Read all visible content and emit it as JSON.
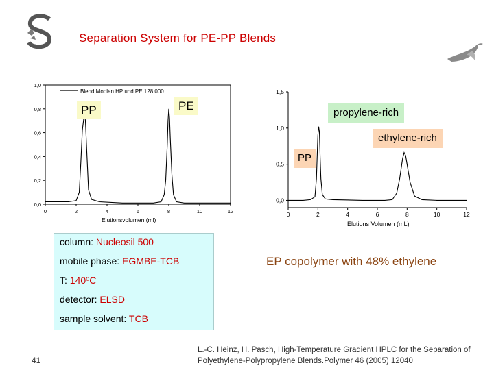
{
  "header": {
    "title": "Separation System for PE-PP Blends"
  },
  "chart_left_labels": {
    "pp": "PP",
    "pe": "PE"
  },
  "chart_right_labels": {
    "propylene_rich": "propylene-rich",
    "ethylene_rich": "ethylene-rich",
    "pp": "PP"
  },
  "chart_data": [
    {
      "type": "line",
      "legend": "Blend Moplen HP und PE 128.000",
      "xlabel": "Elutionsvolumen (ml)",
      "ylabel": "",
      "xlim": [
        0,
        12
      ],
      "ylim": [
        0,
        1.0
      ],
      "xticks": [
        0,
        2,
        4,
        6,
        8,
        10,
        12
      ],
      "yticks": [
        0.0,
        0.2,
        0.4,
        0.6,
        0.8,
        1.0
      ],
      "xtick_labels": [
        "0",
        "2",
        "4",
        "6",
        "8",
        "10",
        "12"
      ],
      "ytick_labels": [
        "0,0",
        "0,2",
        "0,4",
        "0,6",
        "0,8",
        "1,0"
      ],
      "series": [
        {
          "x": [
            0,
            1.5,
            2.0,
            2.2,
            2.3,
            2.4,
            2.5,
            2.55,
            2.6,
            2.7,
            2.8,
            3.0,
            3.5,
            5.0,
            7.0,
            7.5,
            7.7,
            7.8,
            7.9,
            7.95,
            8.0,
            8.05,
            8.1,
            8.2,
            8.3,
            8.5,
            9.0,
            10.0,
            12.0
          ],
          "y": [
            0.02,
            0.02,
            0.03,
            0.1,
            0.35,
            0.62,
            0.73,
            0.75,
            0.7,
            0.4,
            0.12,
            0.04,
            0.02,
            0.01,
            0.01,
            0.02,
            0.08,
            0.2,
            0.5,
            0.7,
            0.8,
            0.72,
            0.55,
            0.25,
            0.08,
            0.02,
            0.01,
            0.01,
            0.01
          ]
        }
      ]
    },
    {
      "type": "line",
      "xlabel": "Elutions Volumen (mL)",
      "ylabel": "",
      "xlim": [
        0,
        12
      ],
      "ylim": [
        -0.1,
        1.5
      ],
      "xticks": [
        0,
        2,
        4,
        6,
        8,
        10,
        12
      ],
      "yticks": [
        0.0,
        0.5,
        1.0,
        1.5
      ],
      "xtick_labels": [
        "0",
        "2",
        "4",
        "6",
        "8",
        "10",
        "12"
      ],
      "ytick_labels": [
        "0,0",
        "0,5",
        "1,0",
        "1,5"
      ],
      "series": [
        {
          "x": [
            0,
            1.0,
            1.5,
            1.8,
            1.9,
            2.0,
            2.05,
            2.1,
            2.15,
            2.2,
            2.3,
            2.5,
            3.0,
            5.0,
            6.5,
            7.0,
            7.3,
            7.5,
            7.7,
            7.8,
            7.9,
            8.0,
            8.2,
            8.5,
            9.0,
            10.0,
            12.0
          ],
          "y": [
            0.0,
            0.0,
            0.01,
            0.05,
            0.3,
            0.9,
            1.02,
            0.95,
            0.6,
            0.3,
            0.08,
            0.02,
            0.01,
            0.0,
            0.0,
            0.01,
            0.1,
            0.3,
            0.58,
            0.66,
            0.62,
            0.5,
            0.25,
            0.06,
            0.01,
            0.0,
            0.0
          ]
        }
      ]
    }
  ],
  "info": {
    "rows": [
      {
        "key": "column:",
        "value": "Nucleosil 500"
      },
      {
        "key": "mobile phase:",
        "value": "EGMBE-TCB"
      },
      {
        "key": "T:",
        "value": "140ºC"
      },
      {
        "key": "detector:",
        "value": "ELSD"
      },
      {
        "key": "sample solvent:",
        "value": "TCB"
      }
    ]
  },
  "note": "EP copolymer with 48% ethylene",
  "footer": {
    "page_number": "41",
    "citation_line1": "L.-C. Heinz, H. Pasch, High-Temperature Gradient HPLC for the Separation of",
    "citation_line2": "Polyethylene-Polypropylene Blends.Polymer 46 (2005) 12040"
  },
  "colors": {
    "title": "#cc0000",
    "info_bg": "#d7fcfc",
    "note": "#8b4513",
    "label_yellow": "#fafac8",
    "label_green": "#c8f0c8",
    "label_peach": "#fcd5b4"
  }
}
